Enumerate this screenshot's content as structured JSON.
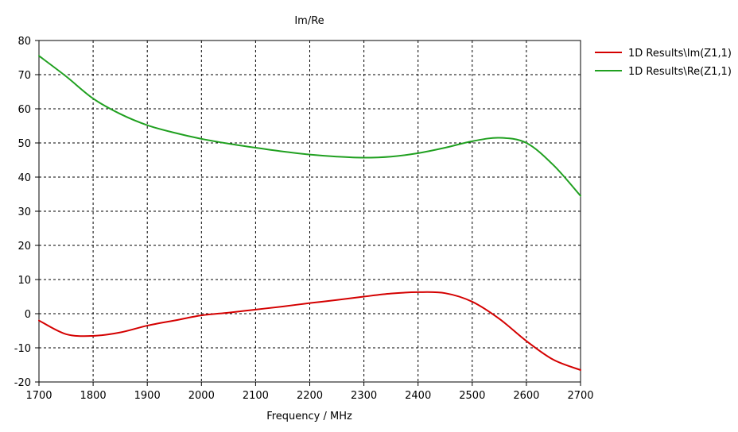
{
  "chart_data": {
    "type": "line",
    "title": "Im/Re",
    "xlabel": "Frequency / MHz",
    "ylabel": "",
    "xlim": [
      1700,
      2700
    ],
    "ylim": [
      -20,
      80
    ],
    "xticks": [
      1700,
      1800,
      1900,
      2000,
      2100,
      2200,
      2300,
      2400,
      2500,
      2600,
      2700
    ],
    "yticks": [
      -20,
      -10,
      0,
      10,
      20,
      30,
      40,
      50,
      60,
      70,
      80
    ],
    "grid": true,
    "legend_position": "top-right",
    "series": [
      {
        "name": "1D Results\\Im(Z1,1)",
        "color": "#d40000",
        "x": [
          1700,
          1750,
          1800,
          1850,
          1900,
          1950,
          2000,
          2050,
          2100,
          2150,
          2200,
          2250,
          2300,
          2350,
          2400,
          2450,
          2500,
          2550,
          2600,
          2650,
          2700
        ],
        "y": [
          -2,
          -6,
          -6.5,
          -5.5,
          -3.5,
          -2,
          -0.5,
          0.3,
          1.2,
          2.1,
          3.1,
          4,
          5,
          5.9,
          6.3,
          6,
          3.5,
          -1.5,
          -8,
          -13.5,
          -16.5
        ]
      },
      {
        "name": "1D Results\\Re(Z1,1)",
        "color": "#20a020",
        "x": [
          1700,
          1750,
          1800,
          1850,
          1900,
          1950,
          2000,
          2050,
          2100,
          2150,
          2200,
          2250,
          2300,
          2350,
          2400,
          2450,
          2500,
          2550,
          2600,
          2650,
          2700
        ],
        "y": [
          75.5,
          69.5,
          63,
          58.5,
          55.2,
          53,
          51.2,
          49.8,
          48.6,
          47.5,
          46.6,
          46,
          45.7,
          46,
          47,
          48.6,
          50.5,
          51.5,
          50,
          43.5,
          34.5
        ]
      }
    ]
  }
}
